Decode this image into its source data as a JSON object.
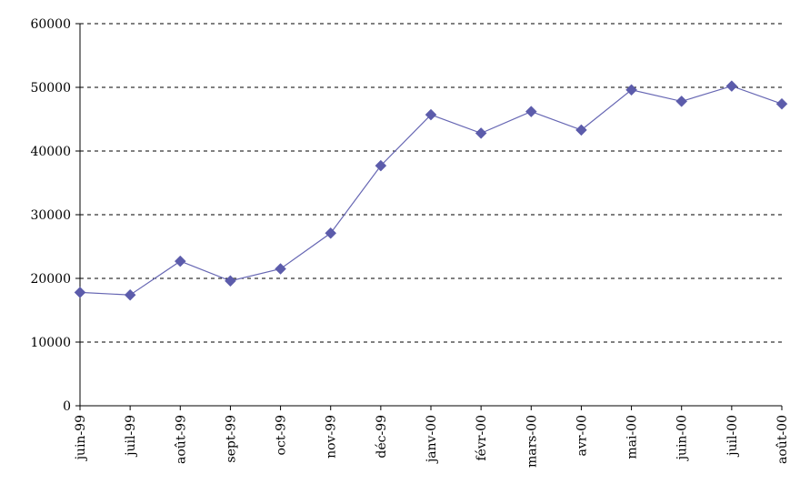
{
  "chart_data": {
    "type": "line",
    "title": "",
    "xlabel": "",
    "ylabel": "",
    "categories": [
      "juin-99",
      "juil-99",
      "août-99",
      "sept-99",
      "oct-99",
      "nov-99",
      "déc-99",
      "janv-00",
      "févr-00",
      "mars-00",
      "avr-00",
      "mai-00",
      "juin-00",
      "juil-00",
      "août-00"
    ],
    "series": [
      {
        "values": [
          17800,
          17400,
          22700,
          19600,
          21500,
          27100,
          37700,
          45700,
          42800,
          46200,
          43300,
          49600,
          47800,
          50200,
          47400
        ]
      }
    ],
    "yticks": [
      "0",
      "10000",
      "20000",
      "30000",
      "40000",
      "50000",
      "60000"
    ],
    "ylim": [
      0,
      60000
    ],
    "grid": true,
    "gridlines": "horizontal dashed",
    "legend": "none",
    "colors": {
      "series": "#6666b3",
      "marker": "#5c5cab",
      "axis": "#000000",
      "grid": "#000000"
    }
  }
}
